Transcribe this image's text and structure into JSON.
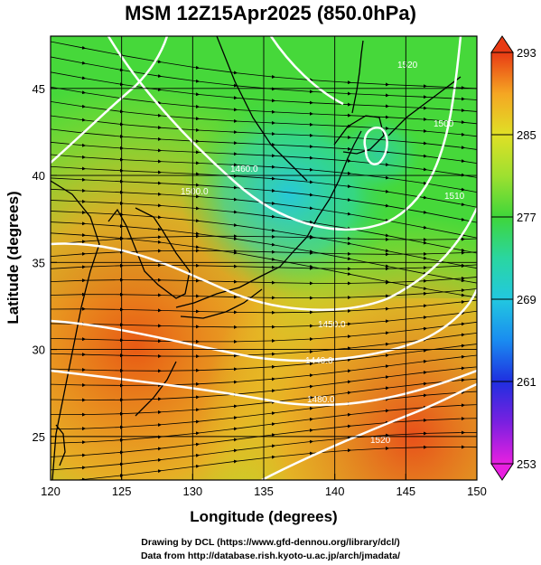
{
  "title": "MSM 12Z15Apr2025 (850.0hPa)",
  "footer": {
    "line1": "Drawing by DCL (https://www.gfd-dennou.org/library/dcl/)",
    "line2": "Data from http://database.rish.kyoto-u.ac.jp/arch/jmadata/"
  },
  "axes": {
    "xlabel": "Longitude (degrees)",
    "ylabel": "Latitude  (degrees)",
    "xticks": [
      "120",
      "125",
      "130",
      "135",
      "140",
      "145",
      "150"
    ],
    "yticks": [
      "25",
      "30",
      "35",
      "40",
      "45"
    ]
  },
  "colorbar": {
    "ticks": [
      "293",
      "285",
      "277",
      "269",
      "261",
      "253"
    ],
    "range": [
      253,
      293
    ]
  },
  "contour_labels": [
    "1500.0",
    "1450.0",
    "1460.0",
    "1440.0",
    "1480.0",
    "1520",
    "1500",
    "1520",
    "1510"
  ],
  "map": {
    "lon_range": [
      120,
      150
    ],
    "lat_range": [
      22.5,
      48
    ],
    "grid_spacing_deg": 5,
    "colors": {
      "hot": "#e85a14",
      "warm": "#f5a623",
      "mild": "#d6e226",
      "green": "#3fd63a",
      "cool": "#2ad6b0",
      "cold": "#22c8e0",
      "contour": "#ffffff",
      "coast": "#000000"
    }
  }
}
